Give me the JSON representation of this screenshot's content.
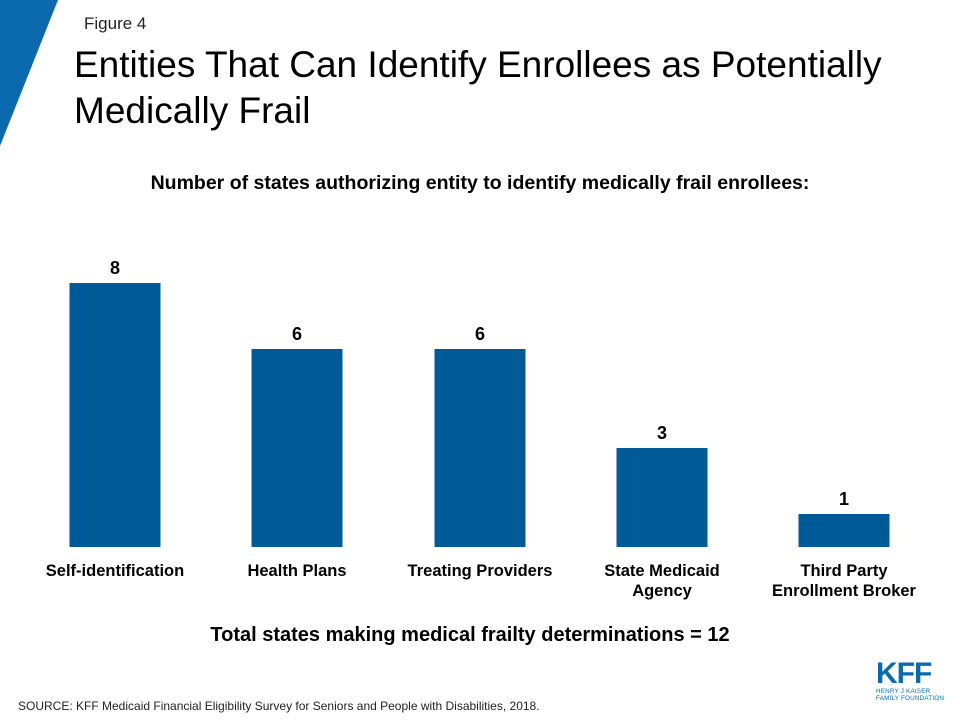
{
  "header": {
    "figure_label": "Figure 4",
    "title": "Entities That Can Identify Enrollees as Potentially Medically Frail",
    "accent_color": "#0a6aad"
  },
  "chart_data": {
    "type": "bar",
    "title": "Number of states authorizing entity to identify medically frail enrollees:",
    "categories": [
      [
        "Self-identification"
      ],
      [
        "Health Plans"
      ],
      [
        "Treating Providers"
      ],
      [
        "State Medicaid",
        "Agency"
      ],
      [
        "Third Party",
        "Enrollment Broker"
      ]
    ],
    "values": [
      8,
      6,
      6,
      3,
      1
    ],
    "ylim": [
      0,
      8
    ],
    "grid": false,
    "bar_color": "#005a96"
  },
  "footer": {
    "total_note": "Total states making medical frailty determinations = 12",
    "source": "SOURCE: KFF Medicaid Financial Eligibility Survey for Seniors and People with Disabilities, 2018.",
    "logo_mark": "KFF",
    "logo_line1": "HENRY J KAISER",
    "logo_line2": "FAMILY FOUNDATION"
  }
}
